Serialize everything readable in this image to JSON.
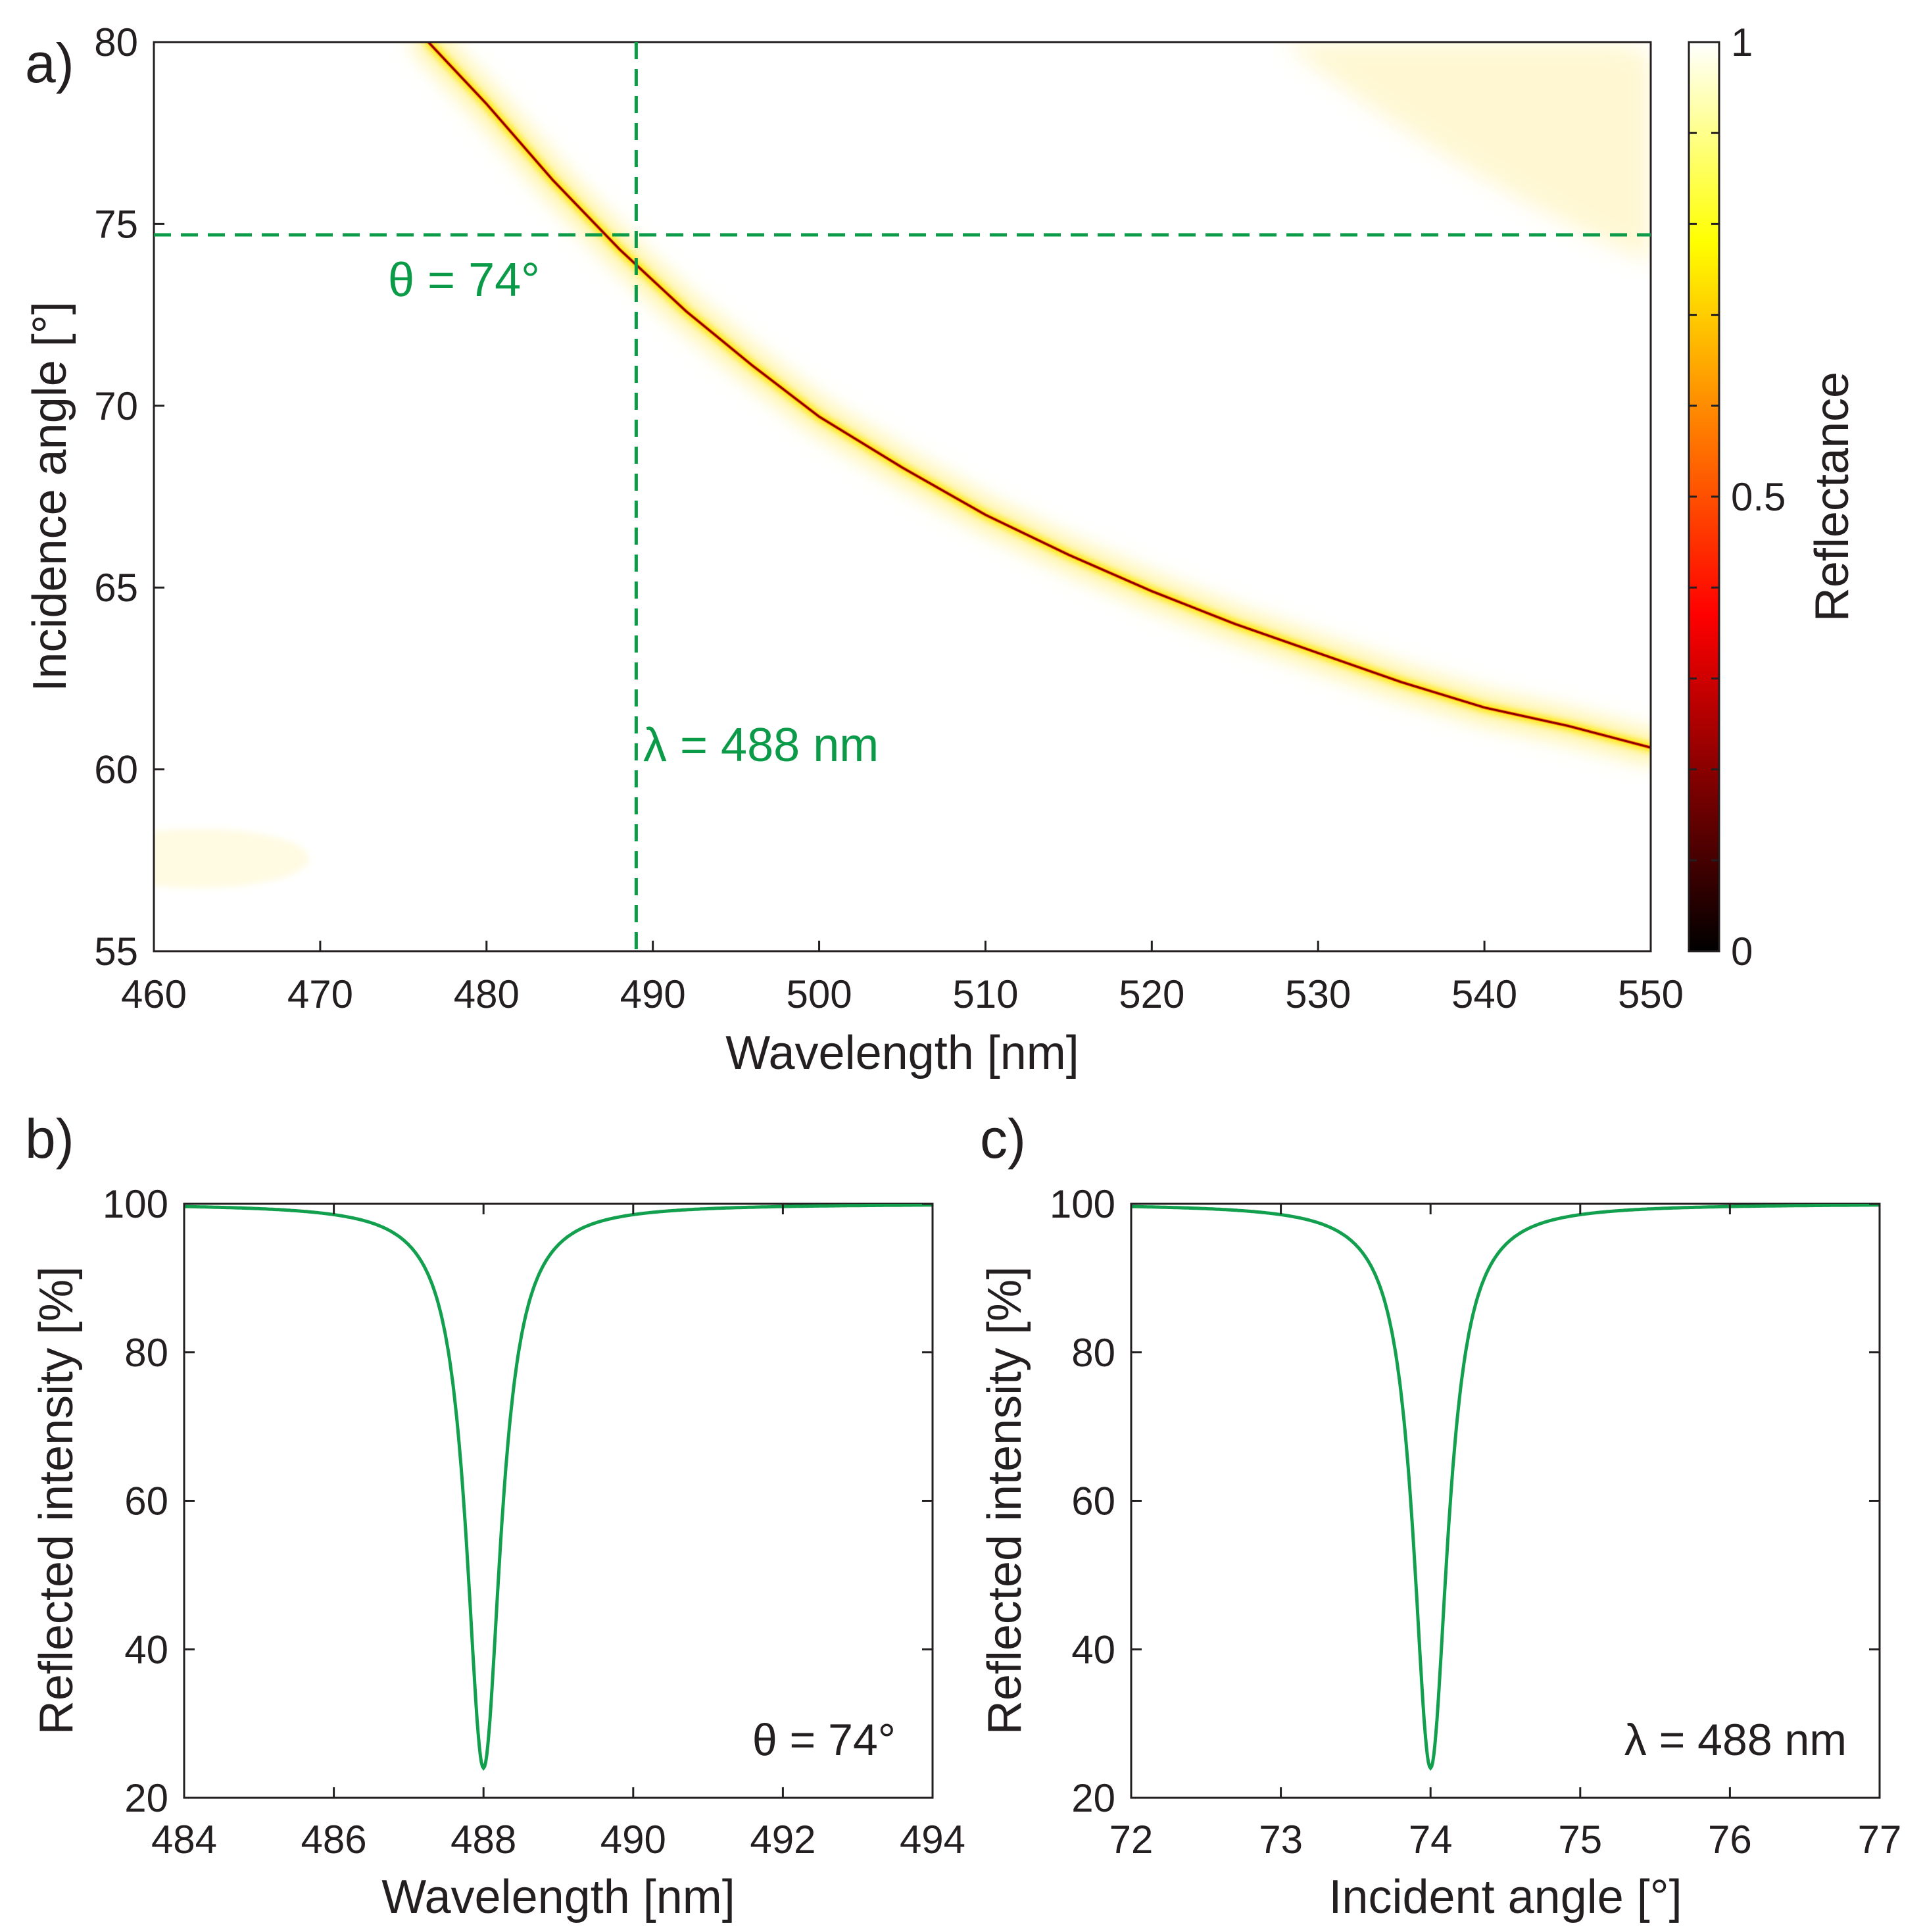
{
  "chart_data": [
    {
      "panel": "a)",
      "type": "heatmap",
      "x": {
        "label": "Wavelength [nm]",
        "lim": [
          460,
          550
        ],
        "ticks": [
          460,
          470,
          480,
          490,
          500,
          510,
          520,
          530,
          540,
          550
        ]
      },
      "y": {
        "label": "Incidence angle [°]",
        "lim": [
          55,
          80
        ],
        "ticks": [
          55,
          60,
          65,
          70,
          75,
          80
        ]
      },
      "colorbar": {
        "label": "Reflectance",
        "lim": [
          0,
          1
        ],
        "ticks": [
          0,
          0.5,
          1
        ],
        "tick_labels": [
          "0",
          "0.5",
          "1"
        ],
        "colormap": "hot"
      },
      "resonance_curve": {
        "wavelength": [
          476.5,
          480,
          484,
          488,
          492,
          496,
          500,
          505,
          510,
          515,
          520,
          525,
          530,
          535,
          540,
          545,
          550
        ],
        "angle": [
          80,
          78.3,
          76.2,
          74.3,
          72.6,
          71.1,
          69.7,
          68.3,
          67.0,
          65.9,
          64.9,
          64.0,
          63.2,
          62.4,
          61.7,
          61.2,
          60.6
        ]
      },
      "guides": {
        "wavelength_nm": 489,
        "angle_deg": 74.7
      },
      "annotations": {
        "angle": "θ = 74°",
        "wavelength": "λ = 488 nm"
      }
    },
    {
      "panel": "b)",
      "type": "line",
      "xlabel": "Wavelength [nm]",
      "ylabel": "Reflected intensity [%]",
      "xlim": [
        484,
        494
      ],
      "ylim": [
        20,
        100
      ],
      "xticks": [
        484,
        486,
        488,
        490,
        492,
        494
      ],
      "yticks": [
        20,
        40,
        60,
        80,
        100
      ],
      "series": [
        {
          "name": "reflectance",
          "color": "#12a04f",
          "center": 488,
          "min": 24,
          "half_width": 0.28
        }
      ],
      "annotation": "θ = 74°"
    },
    {
      "panel": "c)",
      "type": "line",
      "xlabel": "Incident angle [°]",
      "ylabel": "Reflected intensity [%]",
      "xlim": [
        72,
        77
      ],
      "ylim": [
        20,
        100
      ],
      "xticks": [
        72,
        73,
        74,
        75,
        76,
        77
      ],
      "yticks": [
        20,
        40,
        60,
        80,
        100
      ],
      "series": [
        {
          "name": "reflectance",
          "color": "#12a04f",
          "center": 74,
          "min": 24,
          "half_width": 0.14
        }
      ],
      "annotation": "λ = 488 nm"
    }
  ],
  "colors": {
    "guide": "#0a9a48",
    "curve": "#12a04f",
    "axis": "#231f20"
  }
}
